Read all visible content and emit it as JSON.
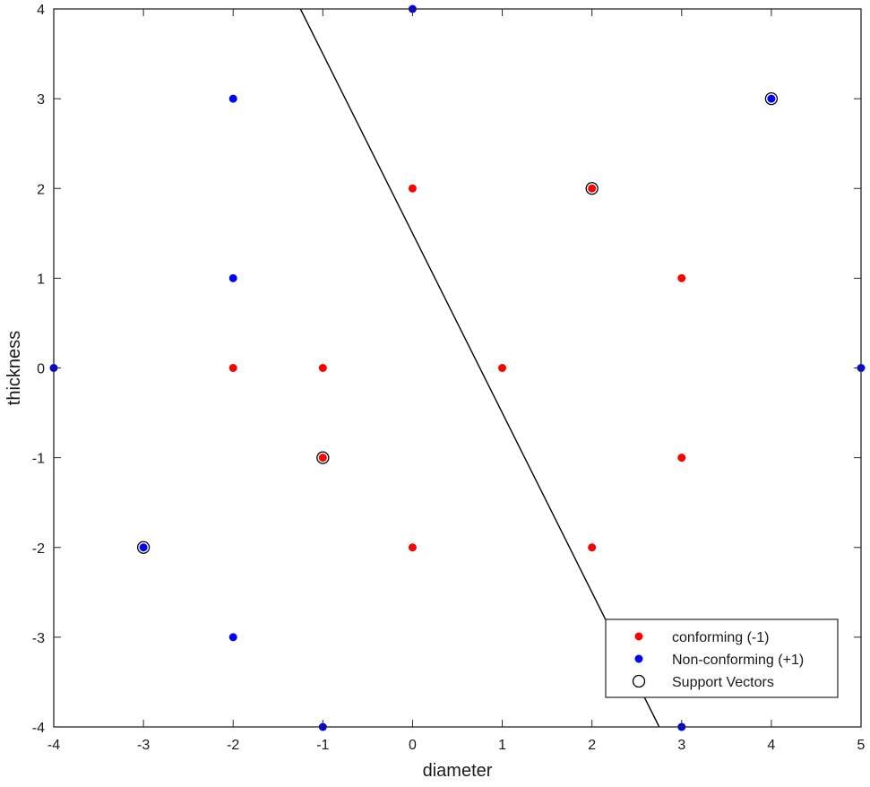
{
  "chart_data": {
    "type": "scatter",
    "title": "",
    "xlabel": "diameter",
    "ylabel": "thickness",
    "xlim": [
      -4,
      5
    ],
    "ylim": [
      -4,
      4
    ],
    "xticks": [
      "-4",
      "-3",
      "-2",
      "-1",
      "0",
      "1",
      "2",
      "3",
      "4",
      "5"
    ],
    "yticks": [
      "-4",
      "-3",
      "-2",
      "-1",
      "0",
      "1",
      "2",
      "3",
      "4"
    ],
    "grid": false,
    "legend_position": "bottom-right",
    "series": [
      {
        "name": "conforming (-1)",
        "color": "#ff0000",
        "marker": "filled-dot",
        "points": [
          [
            0,
            2
          ],
          [
            2,
            2
          ],
          [
            3,
            1
          ],
          [
            -2,
            0
          ],
          [
            -1,
            0
          ],
          [
            1,
            0
          ],
          [
            -1,
            -1
          ],
          [
            3,
            -1
          ],
          [
            0,
            -2
          ],
          [
            2,
            -2
          ]
        ]
      },
      {
        "name": "Non-conforming (+1)",
        "color": "#0000ff",
        "marker": "filled-dot",
        "points": [
          [
            0,
            4
          ],
          [
            -2,
            3
          ],
          [
            4,
            3
          ],
          [
            -2,
            1
          ],
          [
            -4,
            0
          ],
          [
            5,
            0
          ],
          [
            -3,
            -2
          ],
          [
            -2,
            -3
          ],
          [
            -1,
            -4
          ],
          [
            3,
            -4
          ]
        ]
      },
      {
        "name": "Support Vectors",
        "color": "#000000",
        "marker": "open-circle",
        "points": [
          [
            4,
            3
          ],
          [
            2,
            2
          ],
          [
            -1,
            -1
          ],
          [
            -3,
            -2
          ]
        ]
      }
    ],
    "decision_boundary": {
      "color": "#000000",
      "points": [
        [
          -1.25,
          4
        ],
        [
          2.75,
          -4
        ]
      ]
    }
  }
}
